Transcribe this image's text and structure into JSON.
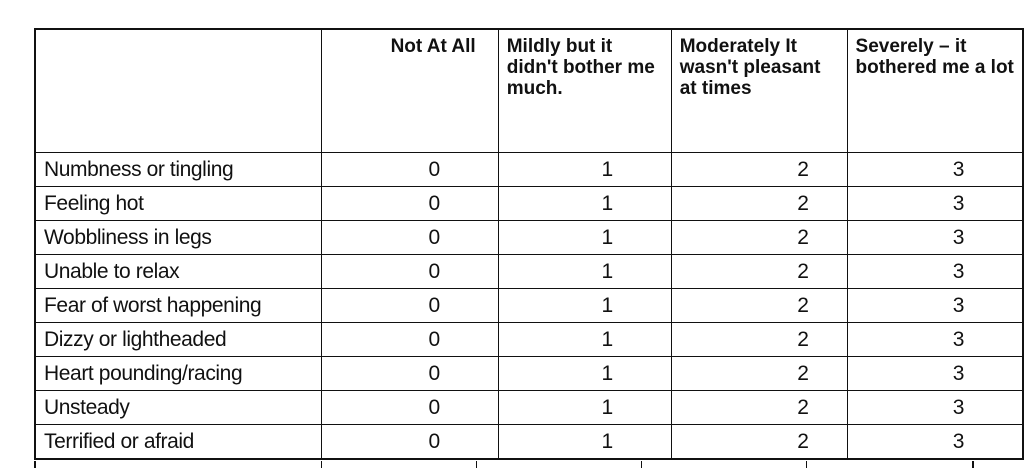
{
  "table": {
    "headers": [
      "",
      "Not At All",
      "Mildly but it didn't bother me much.",
      "Moderately It wasn't pleasant at times",
      "Severely – it bothered me a lot"
    ],
    "rows": [
      {
        "label": "Numbness or tingling",
        "values": [
          "0",
          "1",
          "2",
          "3"
        ]
      },
      {
        "label": "Feeling hot",
        "values": [
          "0",
          "1",
          "2",
          "3"
        ]
      },
      {
        "label": "Wobbliness in legs",
        "values": [
          "0",
          "1",
          "2",
          "3"
        ]
      },
      {
        "label": "Unable to relax",
        "values": [
          "0",
          "1",
          "2",
          "3"
        ]
      },
      {
        "label": "Fear of worst happening",
        "values": [
          "0",
          "1",
          "2",
          "3"
        ]
      },
      {
        "label": "Dizzy or lightheaded",
        "values": [
          "0",
          "1",
          "2",
          "3"
        ]
      },
      {
        "label": "Heart pounding/racing",
        "values": [
          "0",
          "1",
          "2",
          "3"
        ]
      },
      {
        "label": "Unsteady",
        "values": [
          "0",
          "1",
          "2",
          "3"
        ]
      },
      {
        "label": "Terrified or afraid",
        "values": [
          "0",
          "1",
          "2",
          "3"
        ]
      }
    ]
  }
}
